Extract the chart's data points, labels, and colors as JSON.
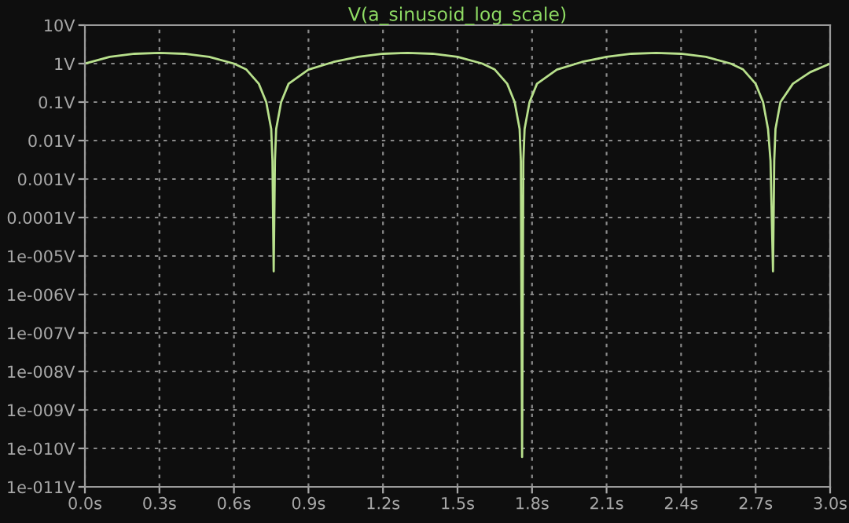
{
  "chart_data": {
    "type": "line",
    "title": "V(a_sinusoid_log_scale)",
    "log": "y",
    "grid": true,
    "line_style": "solid",
    "marker": "none",
    "x": [
      0,
      0.1,
      0.2,
      0.3,
      0.4,
      0.5,
      0.6,
      0.65,
      0.7,
      0.73,
      0.75,
      0.755,
      0.76,
      0.765,
      0.77,
      0.79,
      0.82,
      0.9,
      1.0,
      1.1,
      1.2,
      1.3,
      1.4,
      1.5,
      1.6,
      1.65,
      1.7,
      1.73,
      1.75,
      1.755,
      1.76,
      1.765,
      1.77,
      1.79,
      1.82,
      1.9,
      2.0,
      2.1,
      2.2,
      2.3,
      2.4,
      2.5,
      2.6,
      2.65,
      2.7,
      2.73,
      2.75,
      2.76,
      2.77,
      2.775,
      2.78,
      2.8,
      2.85,
      2.92,
      3.0
    ],
    "series": [
      {
        "color": "#b8e08c",
        "values": [
          1.0,
          1.5,
          1.8,
          1.9,
          1.8,
          1.5,
          1.0,
          0.7,
          0.3,
          0.1,
          0.02,
          0.003,
          4e-06,
          0.003,
          0.02,
          0.1,
          0.3,
          0.7,
          1.1,
          1.5,
          1.8,
          1.9,
          1.8,
          1.5,
          1.0,
          0.7,
          0.3,
          0.1,
          0.02,
          0.003,
          6e-11,
          0.003,
          0.02,
          0.1,
          0.3,
          0.7,
          1.1,
          1.5,
          1.8,
          1.9,
          1.8,
          1.5,
          1.0,
          0.7,
          0.3,
          0.1,
          0.02,
          0.003,
          4e-06,
          0.003,
          0.02,
          0.1,
          0.3,
          0.6,
          1.0
        ]
      }
    ],
    "xlim": [
      0,
      3.0
    ],
    "xticks": [
      {
        "value": 0,
        "label": "0.0s"
      },
      {
        "value": 0.3,
        "label": "0.3s"
      },
      {
        "value": 0.6,
        "label": "0.6s"
      },
      {
        "value": 0.9,
        "label": "0.9s"
      },
      {
        "value": 1.2,
        "label": "1.2s"
      },
      {
        "value": 1.5,
        "label": "1.5s"
      },
      {
        "value": 1.8,
        "label": "1.8s"
      },
      {
        "value": 2.1,
        "label": "2.1s"
      },
      {
        "value": 2.4,
        "label": "2.4s"
      },
      {
        "value": 2.7,
        "label": "2.7s"
      },
      {
        "value": 3.0,
        "label": "3.0s"
      }
    ],
    "ylim": [
      1e-11,
      10
    ],
    "yticks": [
      {
        "value": 10,
        "label": "10V"
      },
      {
        "value": 1,
        "label": "1V"
      },
      {
        "value": 0.1,
        "label": "0.1V"
      },
      {
        "value": 0.01,
        "label": "0.01V"
      },
      {
        "value": 0.001,
        "label": "0.001V"
      },
      {
        "value": 0.0001,
        "label": "0.0001V"
      },
      {
        "value": 1e-05,
        "label": "1e-005V"
      },
      {
        "value": 1e-06,
        "label": "1e-006V"
      },
      {
        "value": 1e-07,
        "label": "1e-007V"
      },
      {
        "value": 1e-08,
        "label": "1e-008V"
      },
      {
        "value": 1e-09,
        "label": "1e-009V"
      },
      {
        "value": 1e-10,
        "label": "1e-010V"
      },
      {
        "value": 1e-11,
        "label": "1e-011V"
      }
    ]
  }
}
